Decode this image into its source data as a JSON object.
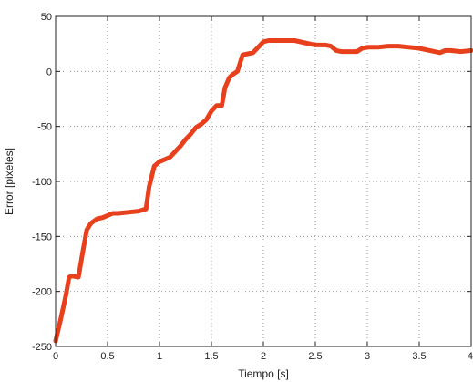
{
  "chart_data": {
    "type": "line",
    "title": "",
    "xlabel": "Tiempo [s]",
    "ylabel": "Error [pixeles]",
    "xlim": [
      0,
      4
    ],
    "ylim": [
      -250,
      50
    ],
    "xticks": [
      0,
      0.5,
      1,
      1.5,
      2,
      2.5,
      3,
      3.5,
      4
    ],
    "xtick_labels": [
      "0",
      "0.5",
      "1",
      "1.5",
      "2",
      "2.5",
      "3",
      "3.5",
      "4"
    ],
    "yticks": [
      50,
      0,
      -50,
      -100,
      -150,
      -200,
      -250
    ],
    "ytick_labels": [
      "50",
      "0",
      "-50",
      "-100",
      "-150",
      "-200",
      "-250"
    ],
    "grid": true,
    "series": [
      {
        "color": "#e8401c",
        "x": [
          0,
          0.05,
          0.1,
          0.13,
          0.16,
          0.22,
          0.26,
          0.3,
          0.34,
          0.4,
          0.45,
          0.5,
          0.55,
          0.6,
          0.7,
          0.8,
          0.87,
          0.9,
          0.95,
          1.0,
          1.05,
          1.1,
          1.15,
          1.2,
          1.25,
          1.3,
          1.35,
          1.4,
          1.45,
          1.5,
          1.55,
          1.6,
          1.63,
          1.67,
          1.7,
          1.75,
          1.8,
          1.85,
          1.9,
          1.95,
          2.0,
          2.05,
          2.1,
          2.2,
          2.3,
          2.4,
          2.5,
          2.55,
          2.6,
          2.65,
          2.7,
          2.75,
          2.8,
          2.85,
          2.9,
          2.95,
          3.0,
          3.1,
          3.2,
          3.3,
          3.4,
          3.5,
          3.6,
          3.7,
          3.75,
          3.8,
          3.9,
          4.0
        ],
        "y": [
          -245,
          -225,
          -203,
          -187,
          -186,
          -187,
          -165,
          -144,
          -138,
          -134,
          -133,
          -131,
          -129,
          -129,
          -128,
          -127,
          -125,
          -105,
          -86,
          -82,
          -80,
          -78,
          -73,
          -68,
          -62,
          -57,
          -51,
          -48,
          -44,
          -36,
          -31,
          -31,
          -15,
          -6,
          -3,
          0,
          15,
          16,
          17,
          22,
          27,
          28,
          28,
          28,
          28,
          26,
          24,
          24,
          24,
          23,
          19,
          18,
          18,
          18,
          18,
          21,
          22,
          22,
          23,
          23,
          22,
          21,
          19,
          17,
          19,
          19,
          18,
          19
        ]
      }
    ]
  }
}
